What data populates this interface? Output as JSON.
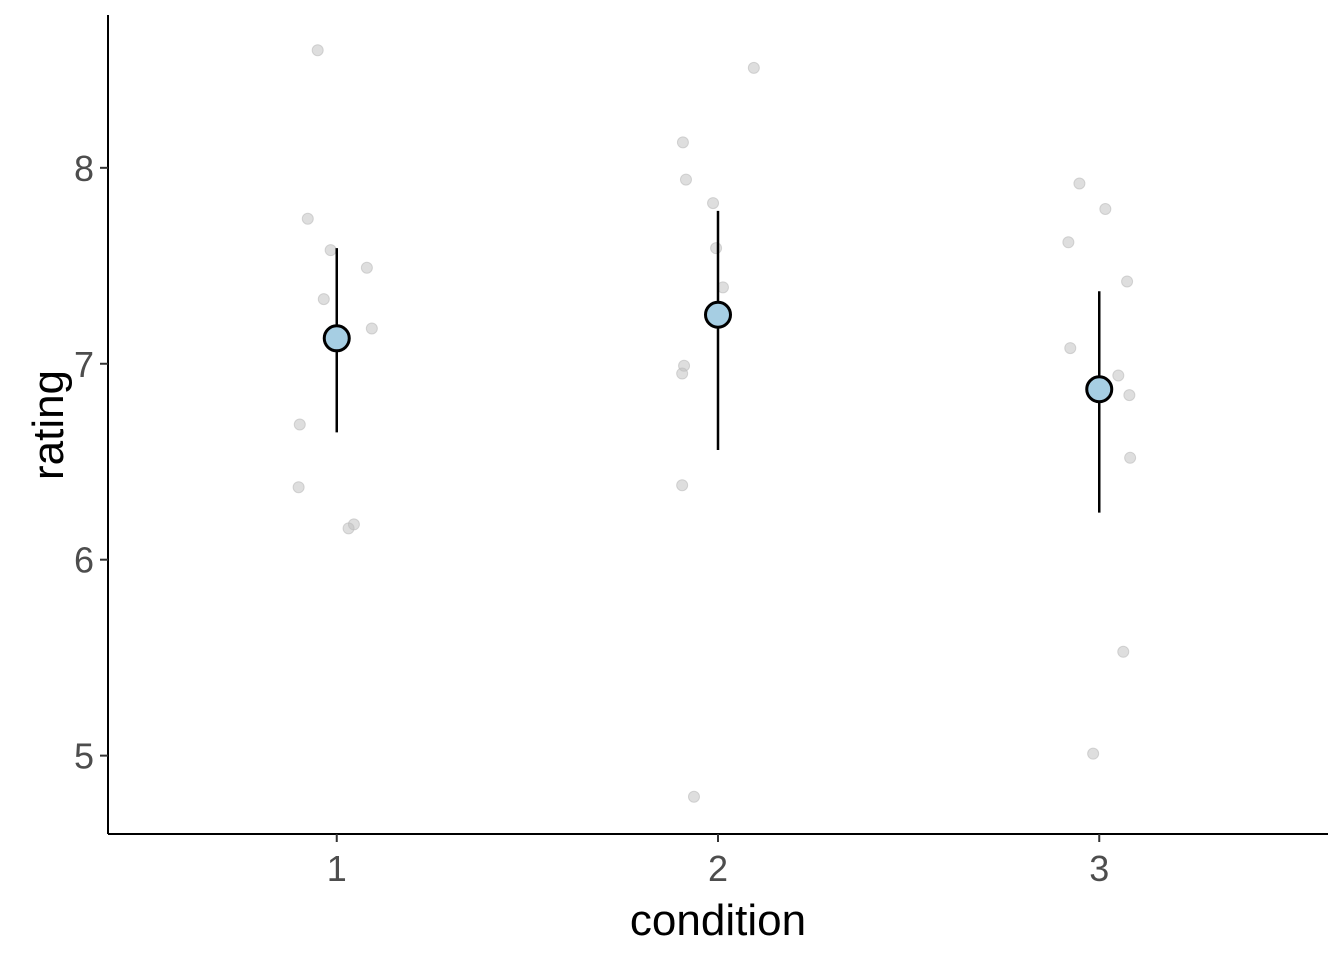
{
  "chart_data": {
    "type": "scatter",
    "title": "",
    "xlabel": "condition",
    "ylabel": "rating",
    "xlim": [
      0.4,
      3.6
    ],
    "ylim": [
      4.6,
      8.78
    ],
    "x_ticks": [
      1,
      2,
      3
    ],
    "x_tick_labels": [
      "1",
      "2",
      "3"
    ],
    "y_ticks": [
      5,
      6,
      7,
      8
    ],
    "y_tick_labels": [
      "5",
      "6",
      "7",
      "8"
    ],
    "grid": false,
    "colors": {
      "raw_point": "#bdbdbd",
      "mean_fill": "#a6cee3",
      "mean_stroke": "#000000",
      "errorbar": "#000000"
    },
    "raw_points": [
      {
        "x": 0.95,
        "y": 8.6
      },
      {
        "x": 0.924,
        "y": 7.74
      },
      {
        "x": 0.984,
        "y": 7.58
      },
      {
        "x": 1.079,
        "y": 7.49
      },
      {
        "x": 0.966,
        "y": 7.33
      },
      {
        "x": 1.092,
        "y": 7.18
      },
      {
        "x": 0.903,
        "y": 6.69
      },
      {
        "x": 0.9,
        "y": 6.37
      },
      {
        "x": 1.045,
        "y": 6.18
      },
      {
        "x": 1.031,
        "y": 6.16
      },
      {
        "x": 2.094,
        "y": 8.51
      },
      {
        "x": 1.908,
        "y": 8.13
      },
      {
        "x": 1.916,
        "y": 7.94
      },
      {
        "x": 1.987,
        "y": 7.82
      },
      {
        "x": 1.995,
        "y": 7.59
      },
      {
        "x": 2.013,
        "y": 7.39
      },
      {
        "x": 1.911,
        "y": 6.99
      },
      {
        "x": 1.906,
        "y": 6.95
      },
      {
        "x": 1.906,
        "y": 6.38
      },
      {
        "x": 1.937,
        "y": 4.79
      },
      {
        "x": 2.948,
        "y": 7.92
      },
      {
        "x": 3.016,
        "y": 7.79
      },
      {
        "x": 2.919,
        "y": 7.62
      },
      {
        "x": 3.073,
        "y": 7.42
      },
      {
        "x": 2.924,
        "y": 7.08
      },
      {
        "x": 3.05,
        "y": 6.94
      },
      {
        "x": 3.079,
        "y": 6.84
      },
      {
        "x": 3.081,
        "y": 6.52
      },
      {
        "x": 3.063,
        "y": 5.53
      },
      {
        "x": 2.984,
        "y": 5.01
      }
    ],
    "summary": [
      {
        "condition": 1,
        "mean": 7.13,
        "lower": 6.65,
        "upper": 7.59
      },
      {
        "condition": 2,
        "mean": 7.25,
        "lower": 6.56,
        "upper": 7.78
      },
      {
        "condition": 3,
        "mean": 6.87,
        "lower": 6.24,
        "upper": 7.37
      }
    ]
  }
}
